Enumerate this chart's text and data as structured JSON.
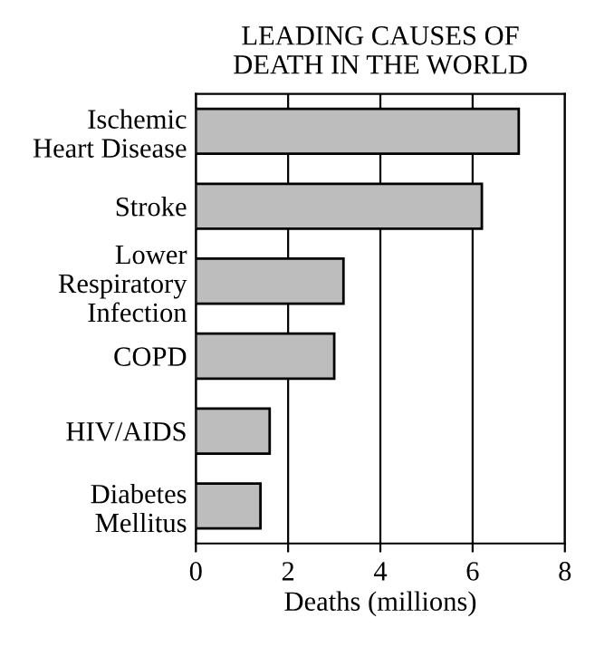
{
  "chart_data": {
    "type": "bar",
    "orientation": "horizontal",
    "title": "LEADING CAUSES OF\nDEATH IN THE WORLD",
    "xlabel": "Deaths (millions)",
    "categories": [
      "Ischemic\nHeart Disease",
      "Stroke",
      "Lower\nRespiratory\nInfection",
      "COPD",
      "HIV/AIDS",
      "Diabetes\nMellitus"
    ],
    "values": [
      7.0,
      6.2,
      3.2,
      3.0,
      1.6,
      1.4
    ],
    "color": "#bdbdbd",
    "xlim": [
      0,
      8
    ],
    "xticks": [
      0,
      2,
      4,
      6,
      8
    ],
    "grid": "x"
  }
}
